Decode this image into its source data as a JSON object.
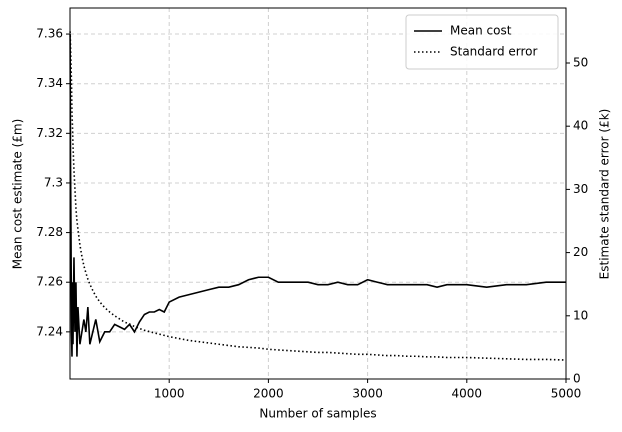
{
  "chart_data": {
    "type": "line",
    "xlabel": "Number of samples",
    "ylabel": "Mean cost estimate (£m)",
    "y2label": "Estimate standard error (£k)",
    "x": [
      1,
      5,
      10,
      15,
      20,
      25,
      30,
      40,
      50,
      60,
      70,
      80,
      100,
      120,
      140,
      160,
      180,
      200,
      230,
      260,
      300,
      350,
      400,
      450,
      500,
      550,
      600,
      650,
      700,
      750,
      800,
      850,
      900,
      950,
      1000,
      1100,
      1200,
      1300,
      1400,
      1500,
      1600,
      1700,
      1800,
      1900,
      2000,
      2100,
      2200,
      2300,
      2400,
      2500,
      2600,
      2700,
      2800,
      2900,
      3000,
      3100,
      3200,
      3300,
      3400,
      3500,
      3600,
      3700,
      3800,
      3900,
      4000,
      4200,
      4400,
      4600,
      4800,
      5000
    ],
    "series": [
      {
        "name": "Mean cost",
        "color": "#000000",
        "linestyle": "solid",
        "axis": "y",
        "values": [
          7.36,
          7.31,
          7.28,
          7.24,
          7.23,
          7.26,
          7.235,
          7.27,
          7.24,
          7.26,
          7.23,
          7.25,
          7.235,
          7.24,
          7.245,
          7.24,
          7.25,
          7.235,
          7.24,
          7.245,
          7.236,
          7.24,
          7.24,
          7.243,
          7.242,
          7.241,
          7.243,
          7.24,
          7.244,
          7.247,
          7.248,
          7.248,
          7.249,
          7.248,
          7.252,
          7.254,
          7.255,
          7.256,
          7.257,
          7.258,
          7.258,
          7.259,
          7.261,
          7.262,
          7.262,
          7.26,
          7.26,
          7.26,
          7.26,
          7.259,
          7.259,
          7.26,
          7.259,
          7.259,
          7.261,
          7.26,
          7.259,
          7.259,
          7.259,
          7.259,
          7.259,
          7.258,
          7.259,
          7.259,
          7.259,
          7.258,
          7.259,
          7.259,
          7.26,
          7.26
        ]
      },
      {
        "name": "Standard error",
        "color": "#000000",
        "linestyle": "dotted",
        "axis": "y2",
        "values": [
          55,
          53,
          50,
          47,
          42,
          40,
          37,
          33,
          30,
          27,
          25,
          23.7,
          21.2,
          19.4,
          17.9,
          16.8,
          15.8,
          15,
          14,
          13.1,
          12.2,
          11.3,
          10.6,
          10,
          9.5,
          9,
          8.7,
          8.3,
          8,
          7.7,
          7.5,
          7.3,
          7.1,
          6.9,
          6.7,
          6.4,
          6.1,
          5.9,
          5.7,
          5.5,
          5.3,
          5.1,
          5,
          4.9,
          4.7,
          4.6,
          4.5,
          4.4,
          4.3,
          4.2,
          4.2,
          4.1,
          4,
          3.9,
          3.9,
          3.8,
          3.7,
          3.7,
          3.6,
          3.6,
          3.5,
          3.5,
          3.4,
          3.4,
          3.4,
          3.3,
          3.2,
          3.1,
          3.1,
          3
        ]
      }
    ],
    "xlim": [
      0,
      5000
    ],
    "xticks": [
      1000,
      2000,
      3000,
      4000,
      5000
    ],
    "ylim": [
      7.221,
      7.3705
    ],
    "yticks": [
      7.24,
      7.26,
      7.28,
      7.3,
      7.32,
      7.34,
      7.36
    ],
    "y2lim": [
      0,
      58.7
    ],
    "y2ticks": [
      0,
      10,
      20,
      30,
      40,
      50
    ],
    "grid": true,
    "legend": "upper right"
  }
}
